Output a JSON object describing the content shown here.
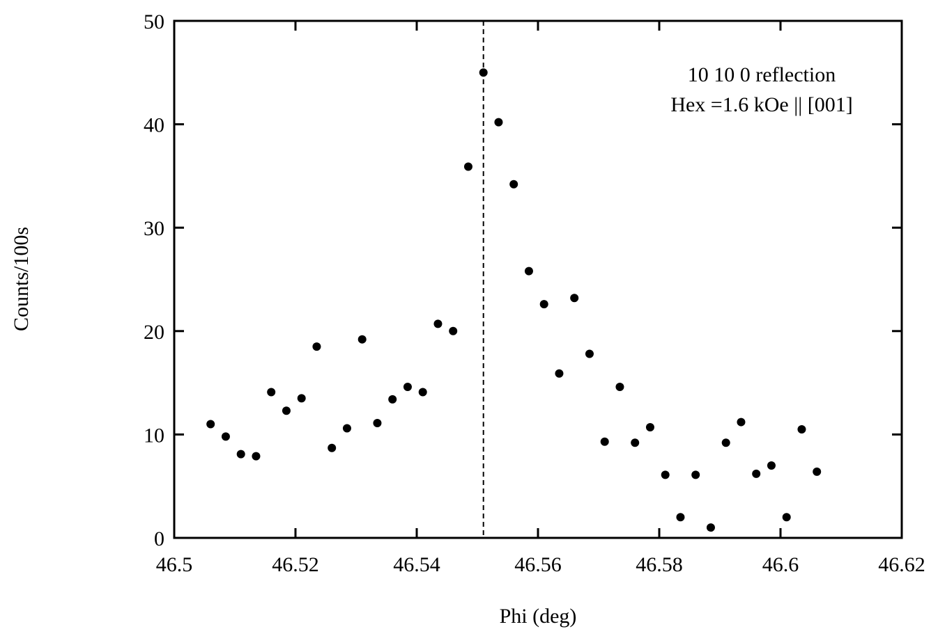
{
  "chart_data": {
    "type": "scatter",
    "title": "",
    "xlabel": "Phi (deg)",
    "ylabel": "Counts/100s",
    "xlim": [
      46.5,
      46.62
    ],
    "ylim": [
      0,
      50
    ],
    "x_ticks": [
      "46.5",
      "46.52",
      "46.54",
      "46.56",
      "46.58",
      "46.6",
      "46.62"
    ],
    "y_ticks": [
      "0",
      "10",
      "20",
      "30",
      "40",
      "50"
    ],
    "grid": false,
    "legend": "none",
    "marker_color": "#000000",
    "reference_line": {
      "x": 46.551,
      "style": "dashed"
    },
    "annotation": [
      "10 10 0 reflection",
      "Hex =1.6 kOe || [001]"
    ],
    "series": [
      {
        "points": [
          [
            46.506,
            11.0
          ],
          [
            46.5085,
            9.8
          ],
          [
            46.511,
            8.1
          ],
          [
            46.5135,
            7.9
          ],
          [
            46.516,
            14.1
          ],
          [
            46.5185,
            12.3
          ],
          [
            46.521,
            13.5
          ],
          [
            46.5235,
            18.5
          ],
          [
            46.526,
            8.7
          ],
          [
            46.5285,
            10.6
          ],
          [
            46.531,
            19.2
          ],
          [
            46.5335,
            11.1
          ],
          [
            46.536,
            13.4
          ],
          [
            46.5385,
            14.6
          ],
          [
            46.541,
            14.1
          ],
          [
            46.5435,
            20.7
          ],
          [
            46.546,
            20.0
          ],
          [
            46.5485,
            35.9
          ],
          [
            46.551,
            45.0
          ],
          [
            46.5535,
            40.2
          ],
          [
            46.556,
            34.2
          ],
          [
            46.5585,
            25.8
          ],
          [
            46.561,
            22.6
          ],
          [
            46.5635,
            15.9
          ],
          [
            46.566,
            23.2
          ],
          [
            46.5685,
            17.8
          ],
          [
            46.571,
            9.3
          ],
          [
            46.5735,
            14.6
          ],
          [
            46.576,
            9.2
          ],
          [
            46.5785,
            10.7
          ],
          [
            46.581,
            6.1
          ],
          [
            46.5835,
            2.0
          ],
          [
            46.586,
            6.1
          ],
          [
            46.5885,
            1.0
          ],
          [
            46.591,
            9.2
          ],
          [
            46.5935,
            11.2
          ],
          [
            46.596,
            6.2
          ],
          [
            46.5985,
            7.0
          ],
          [
            46.601,
            2.0
          ],
          [
            46.6035,
            10.5
          ],
          [
            46.606,
            6.4
          ]
        ]
      }
    ]
  }
}
